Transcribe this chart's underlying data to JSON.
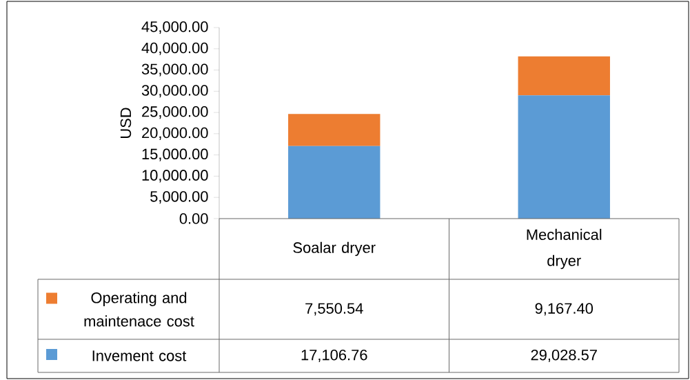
{
  "chart_data": {
    "type": "bar",
    "stacked": true,
    "ylabel": "USD",
    "categories": [
      "Soalar dryer",
      "Mechanical dryer"
    ],
    "series": [
      {
        "name": "Invement cost",
        "color": "#5b9bd5",
        "values": [
          17106.76,
          29028.57
        ],
        "value_labels": [
          "17,106.76",
          "29,028.57"
        ]
      },
      {
        "name": "Operating and maintenace cost",
        "color": "#ed7d31",
        "values": [
          7550.54,
          9167.4
        ],
        "value_labels": [
          "7,550.54",
          "9,167.40"
        ]
      }
    ],
    "ylim": [
      0,
      45000
    ],
    "yticks": [
      {
        "value": 0,
        "label": "0.00"
      },
      {
        "value": 5000,
        "label": "5,000.00"
      },
      {
        "value": 10000,
        "label": "10,000.00"
      },
      {
        "value": 15000,
        "label": "15,000.00"
      },
      {
        "value": 20000,
        "label": "20,000.00"
      },
      {
        "value": 25000,
        "label": "25,000.00"
      },
      {
        "value": 30000,
        "label": "30,000.00"
      },
      {
        "value": 35000,
        "label": "35,000.00"
      },
      {
        "value": 40000,
        "label": "40,000.00"
      },
      {
        "value": 45000,
        "label": "45,000.00"
      }
    ],
    "legend": "bottom left"
  }
}
